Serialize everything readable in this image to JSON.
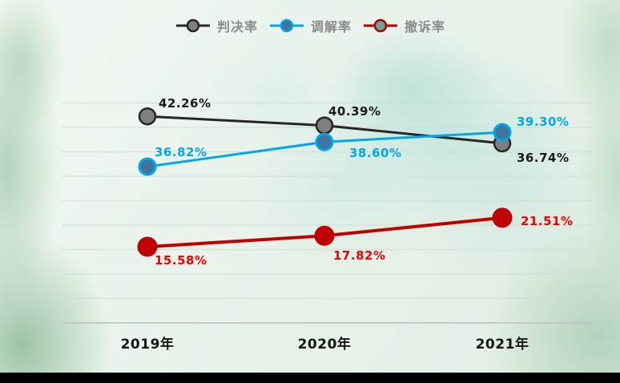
{
  "legend": {
    "text_color": "#8c8c8c",
    "items": [
      {
        "label": "判决率",
        "line_color": "#262626",
        "marker_fill": "#7f7f7f",
        "marker_stroke": "#262626"
      },
      {
        "label": "调解率",
        "line_color": "#00a8e8",
        "marker_fill": "#41719c",
        "marker_stroke": "#00a8e8"
      },
      {
        "label": "撤诉率",
        "line_color": "#b00000",
        "marker_fill": "#6aa39a",
        "marker_stroke": "#b00000"
      }
    ]
  },
  "chart_data": {
    "type": "line",
    "title": "",
    "xlabel": "",
    "ylabel": "",
    "categories": [
      "2019年",
      "2020年",
      "2021年"
    ],
    "series": [
      {
        "name": "判决率",
        "values": [
          42.26,
          40.39,
          36.74
        ],
        "axis": "primary",
        "color": "#262626",
        "marker_fill": "#7f7f7f",
        "marker_stroke": "#262626",
        "label_color": "#1a1a1a"
      },
      {
        "name": "调解率",
        "values": [
          36.82,
          38.6,
          39.3
        ],
        "axis": "secondary",
        "color": "#00a8e8",
        "marker_fill": "#41719c",
        "marker_stroke": "#00a8e8",
        "label_color": "#00a8e8"
      },
      {
        "name": "撤诉率",
        "values": [
          15.58,
          17.82,
          21.51
        ],
        "axis": "primary",
        "color": "#c00000",
        "marker_fill": "#c00000",
        "marker_stroke": "#c00000",
        "label_color": "#ee0000"
      }
    ],
    "value_labels": [
      [
        "42.26%",
        "40.39%",
        "36.74%"
      ],
      [
        "36.82%",
        "38.60%",
        "39.30%"
      ],
      [
        "15.58%",
        "17.82%",
        "21.51%"
      ]
    ],
    "ylim": [
      0,
      45
    ],
    "gridline_step_pct": 5,
    "grid": "horizontal",
    "legend_position": "top"
  }
}
